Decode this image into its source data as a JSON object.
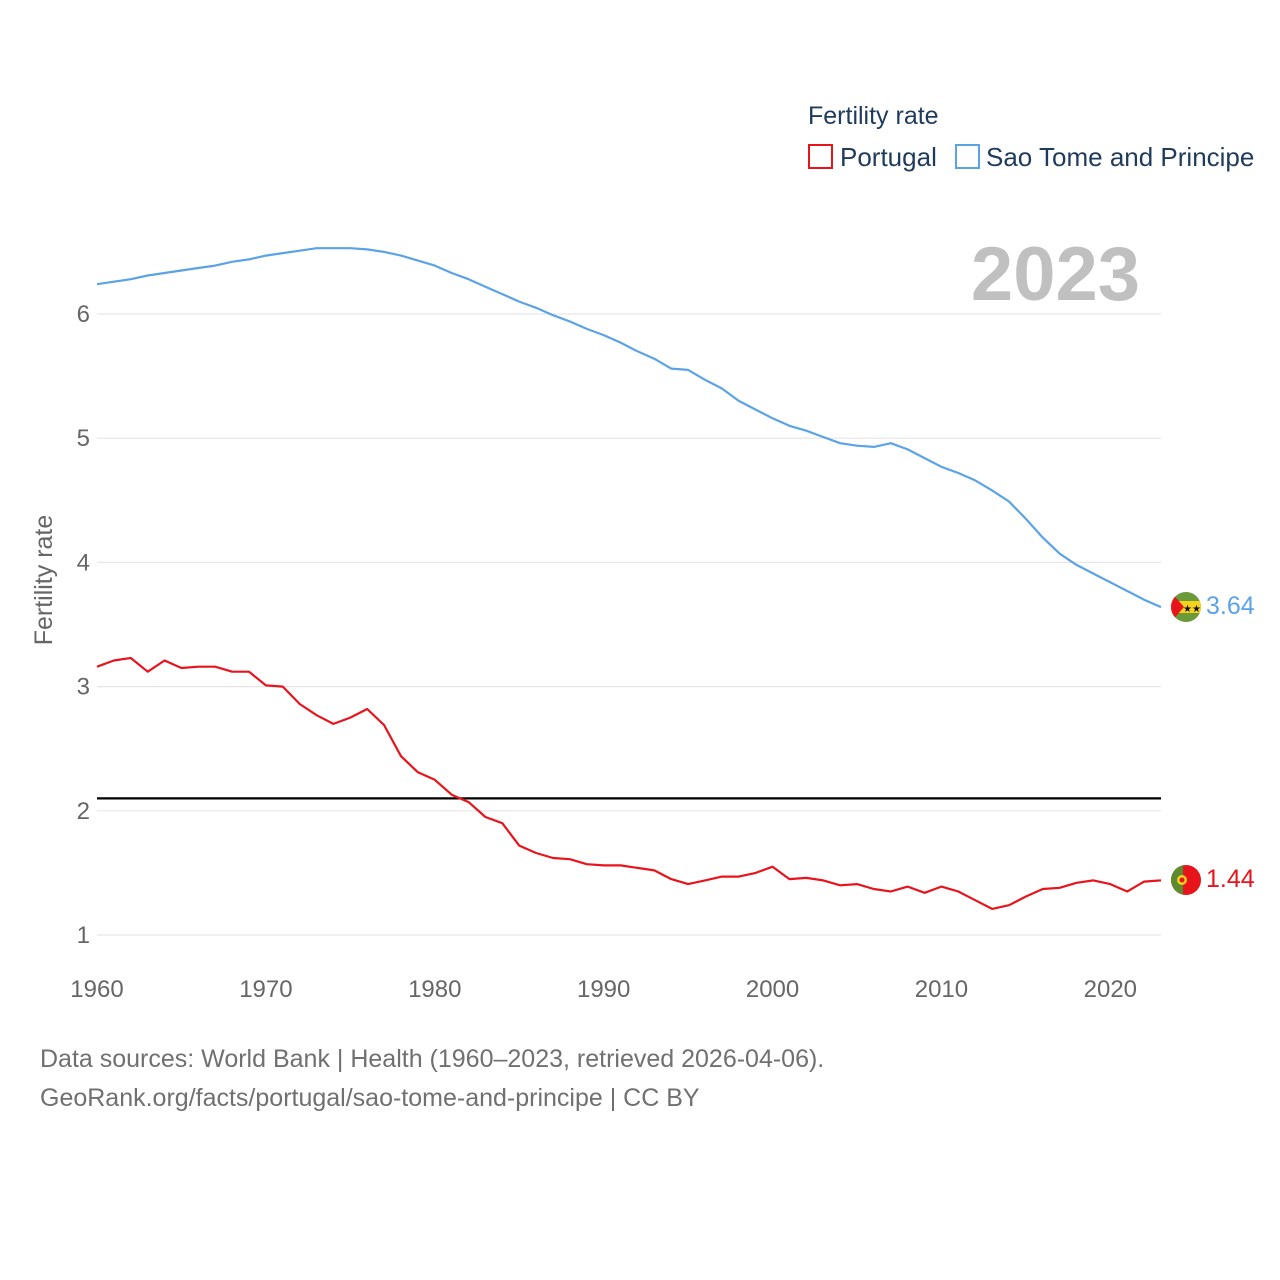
{
  "chart_data": {
    "type": "line",
    "title": "",
    "legend_title": "Fertility rate",
    "year_label": "2023",
    "xlabel": "",
    "ylabel": "Fertility rate",
    "xlim": [
      1960,
      2023
    ],
    "ylim": [
      0.8,
      6.9
    ],
    "x_ticks": [
      1960,
      1970,
      1980,
      1990,
      2000,
      2010,
      2020
    ],
    "y_ticks": [
      1,
      2,
      3,
      4,
      5,
      6
    ],
    "legend_position": "top-right",
    "reference_line": {
      "value": 2.1,
      "color": "#000000"
    },
    "series": [
      {
        "name": "Portugal",
        "color": "#e8141c",
        "end_label": "1.44",
        "values": [
          3.16,
          3.21,
          3.23,
          3.12,
          3.21,
          3.15,
          3.16,
          3.16,
          3.12,
          3.12,
          3.01,
          3.0,
          2.86,
          2.77,
          2.7,
          2.75,
          2.82,
          2.69,
          2.44,
          2.31,
          2.25,
          2.13,
          2.07,
          1.95,
          1.9,
          1.72,
          1.66,
          1.62,
          1.61,
          1.57,
          1.56,
          1.56,
          1.54,
          1.52,
          1.45,
          1.41,
          1.44,
          1.47,
          1.47,
          1.5,
          1.55,
          1.45,
          1.46,
          1.44,
          1.4,
          1.41,
          1.37,
          1.35,
          1.39,
          1.34,
          1.39,
          1.35,
          1.28,
          1.21,
          1.24,
          1.31,
          1.37,
          1.38,
          1.42,
          1.44,
          1.41,
          1.35,
          1.43,
          1.44
        ]
      },
      {
        "name": "Sao Tome and Principe",
        "color": "#5ba3e6",
        "end_label": "3.64",
        "values": [
          6.24,
          6.26,
          6.28,
          6.31,
          6.33,
          6.35,
          6.37,
          6.39,
          6.42,
          6.44,
          6.47,
          6.49,
          6.51,
          6.53,
          6.53,
          6.53,
          6.52,
          6.5,
          6.47,
          6.43,
          6.39,
          6.33,
          6.28,
          6.22,
          6.16,
          6.1,
          6.05,
          5.99,
          5.94,
          5.88,
          5.83,
          5.77,
          5.7,
          5.64,
          5.56,
          5.55,
          5.47,
          5.4,
          5.3,
          5.23,
          5.16,
          5.1,
          5.06,
          5.01,
          4.96,
          4.94,
          4.93,
          4.96,
          4.91,
          4.84,
          4.77,
          4.72,
          4.66,
          4.58,
          4.49,
          4.35,
          4.2,
          4.07,
          3.98,
          3.91,
          3.84,
          3.77,
          3.7,
          3.64
        ]
      }
    ]
  },
  "footer": {
    "source_line": "Data sources: World Bank | Health (1960–2023, retrieved 2026-04-06).",
    "url_line": "GeoRank.org/facts/portugal/sao-tome-and-principe | CC BY"
  }
}
